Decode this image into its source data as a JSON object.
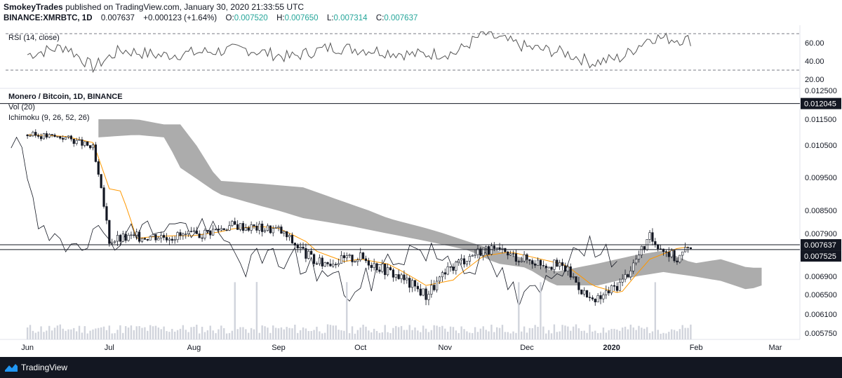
{
  "header": {
    "author": "SmokeyTrades",
    "published_text": "published on TradingView.com, January 30, 2020 21:33:55 UTC",
    "symbol_line": "BINANCE:XMRBTC, 1D",
    "last": "0.007637",
    "change": "+0.000123 (+1.64%)",
    "o_label": "O:",
    "o": "0.007520",
    "h_label": "H:",
    "h": "0.007650",
    "l_label": "L:",
    "l": "0.007314",
    "c_label": "C:",
    "c": "0.007637"
  },
  "footer": {
    "brand": "TradingView",
    "logo_icon": "tradingview-logo-icon"
  },
  "colors": {
    "up": "#26a69a",
    "candle": "#131722",
    "cloud": "#9e9e9e",
    "cloud_light": "#e6e6e6",
    "base_line": "#ff9800",
    "lagging": "#131722",
    "rsi_line": "#555555",
    "footer_bg": "#131722",
    "label_bg": "#131722"
  },
  "chart_data": [
    {
      "type": "line",
      "title": "RSI (14, close)",
      "y_ticks": [
        "60.00",
        "40.00",
        "20.00"
      ],
      "levels": [
        70,
        30
      ],
      "ylim": [
        20,
        75
      ],
      "x": [
        "2019-06-01",
        "2019-06-15",
        "2019-06-25",
        "2019-07-05",
        "2019-07-20",
        "2019-08-05",
        "2019-08-20",
        "2019-09-05",
        "2019-09-20",
        "2019-10-05",
        "2019-10-20",
        "2019-11-05",
        "2019-11-15",
        "2019-12-01",
        "2019-12-15",
        "2019-12-25",
        "2020-01-05",
        "2020-01-15",
        "2020-01-30"
      ],
      "y": [
        47,
        56,
        33,
        52,
        46,
        50,
        53,
        44,
        55,
        52,
        47,
        49,
        70,
        55,
        49,
        38,
        44,
        66,
        63
      ]
    },
    {
      "type": "candlestick",
      "title": "Monero / Bitcoin, 1D, BINANCE",
      "indicators": [
        "Vol (20)",
        "Ichimoku (9, 26, 52, 26)"
      ],
      "y_ticks": [
        "0.012500",
        "0.011500",
        "0.010500",
        "0.009500",
        "0.008500",
        "0.007900",
        "0.006900",
        "0.006500",
        "0.006100",
        "0.005750"
      ],
      "x_ticks": [
        "Jun",
        "Jul",
        "Aug",
        "Sep",
        "Oct",
        "Nov",
        "Dec",
        "2020",
        "Feb",
        "Mar"
      ],
      "x": [
        "2019-06-01",
        "2019-06-15",
        "2019-06-25",
        "2019-07-01",
        "2019-07-15",
        "2019-08-01",
        "2019-08-15",
        "2019-09-01",
        "2019-09-15",
        "2019-10-01",
        "2019-10-15",
        "2019-10-25",
        "2019-11-05",
        "2019-11-15",
        "2019-12-01",
        "2019-12-15",
        "2019-12-25",
        "2020-01-05",
        "2020-01-15",
        "2020-01-25",
        "2020-01-30"
      ],
      "close": [
        0.0109,
        0.0108,
        0.0104,
        0.00775,
        0.00785,
        0.00785,
        0.00812,
        0.008,
        0.0072,
        0.00735,
        0.0069,
        0.0065,
        0.0072,
        0.00755,
        0.0073,
        0.0071,
        0.0063,
        0.0068,
        0.0078,
        0.0073,
        0.007637
      ],
      "horizontal_levels": [
        {
          "price_label": "0.012045",
          "value": 0.012045
        },
        {
          "price_label": "0.007637",
          "value": 0.007637
        },
        {
          "price_label": "0.007525",
          "value": 0.007525
        }
      ],
      "cloud_top": [
        0.0115,
        0.0115,
        0.0113,
        0.0113,
        0.0094,
        0.0093,
        0.0092,
        0.0087,
        0.0083,
        0.008,
        0.0077,
        0.0075,
        0.0073,
        0.007,
        0.0072,
        0.0074,
        0.0075,
        0.0072,
        0.0073,
        0.0071,
        0.0071
      ],
      "cloud_bottom": [
        0.0108,
        0.0109,
        0.0108,
        0.0098,
        0.009,
        0.0086,
        0.0083,
        0.0081,
        0.0079,
        0.0077,
        0.0075,
        0.0072,
        0.0071,
        0.0067,
        0.0067,
        0.0069,
        0.007,
        0.0069,
        0.0068,
        0.0066,
        0.0067
      ]
    }
  ]
}
